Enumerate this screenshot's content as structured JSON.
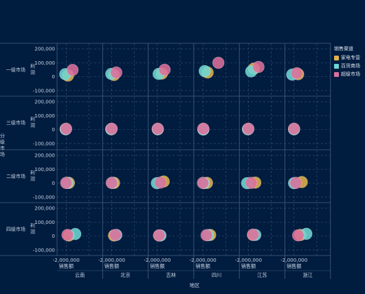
{
  "colors": {
    "background": "#001c3f",
    "grid": "#3d5674",
    "divider": "#43607f",
    "text": "#c9d4e4"
  },
  "legend": {
    "title": "销售渠道",
    "items": [
      {
        "label": "家电专营",
        "color": "#e0b24a"
      },
      {
        "label": "百货商场",
        "color": "#6dd7d4"
      },
      {
        "label": "超级市场",
        "color": "#dc6f9c"
      }
    ]
  },
  "chart_data": {
    "type": "scatter",
    "xlabel": "地区",
    "column_field_label": "销售额",
    "ylabel": "利润",
    "row_field_label": "分级市场",
    "columns": [
      "云南",
      "北京",
      "吉林",
      "四川",
      "江苏",
      "浙江"
    ],
    "rows": [
      "一级市场",
      "三级市场",
      "二级市场",
      "四级市场"
    ],
    "x_tick": "-2,000,000",
    "x_tick_value": -2000000,
    "xlim": [
      -3000000,
      2000000
    ],
    "ylim": [
      -140000,
      240000
    ],
    "y_ticks": [
      {
        "value": 200000,
        "label": "200,000"
      },
      {
        "value": 100000,
        "label": "100,000"
      },
      {
        "value": 0,
        "label": "0"
      },
      {
        "value": -100000,
        "label": "-100,000"
      }
    ],
    "grid": true,
    "legend_position": "top-right",
    "series": [
      {
        "name": "家电专营",
        "points": [
          {
            "row": "一级市场",
            "col": "云南",
            "x": -1800000,
            "y": 8000
          },
          {
            "row": "一级市场",
            "col": "北京",
            "x": -1750000,
            "y": 12000
          },
          {
            "row": "一级市场",
            "col": "吉林",
            "x": -1500000,
            "y": 22000
          },
          {
            "row": "一级市场",
            "col": "四川",
            "x": -1480000,
            "y": 30000
          },
          {
            "row": "一级市场",
            "col": "江苏",
            "x": -1400000,
            "y": 58000
          },
          {
            "row": "一级市场",
            "col": "浙江",
            "x": -1550000,
            "y": 18000
          },
          {
            "row": "三级市场",
            "col": "云南",
            "x": -2050000,
            "y": 4000
          },
          {
            "row": "三级市场",
            "col": "北京",
            "x": -2050000,
            "y": 4000
          },
          {
            "row": "三级市场",
            "col": "吉林",
            "x": -1950000,
            "y": 4000
          },
          {
            "row": "三级市场",
            "col": "四川",
            "x": -1950000,
            "y": 4000
          },
          {
            "row": "三级市场",
            "col": "江苏",
            "x": -2050000,
            "y": 4000
          },
          {
            "row": "三级市场",
            "col": "浙江",
            "x": -2000000,
            "y": 4000
          },
          {
            "row": "二级市场",
            "col": "云南",
            "x": -1700000,
            "y": 2000
          },
          {
            "row": "二级市场",
            "col": "北京",
            "x": -1750000,
            "y": 2000
          },
          {
            "row": "二级市场",
            "col": "吉林",
            "x": -1300000,
            "y": 12000
          },
          {
            "row": "二级市场",
            "col": "四川",
            "x": -1550000,
            "y": 2000
          },
          {
            "row": "二级市场",
            "col": "江苏",
            "x": -1250000,
            "y": 4000
          },
          {
            "row": "二级市场",
            "col": "浙江",
            "x": -1150000,
            "y": 8000
          },
          {
            "row": "四级市场",
            "col": "云南",
            "x": -1700000,
            "y": 4000
          },
          {
            "row": "四级市场",
            "col": "北京",
            "x": -1750000,
            "y": 4000
          },
          {
            "row": "四级市场",
            "col": "吉林",
            "x": -1800000,
            "y": 4000
          },
          {
            "row": "四级市场",
            "col": "四川",
            "x": -1200000,
            "y": 8000
          },
          {
            "row": "四级市场",
            "col": "江苏",
            "x": -1500000,
            "y": 8000
          },
          {
            "row": "四级市场",
            "col": "浙江",
            "x": -1300000,
            "y": 8000
          }
        ]
      },
      {
        "name": "百货商场",
        "points": [
          {
            "row": "一级市场",
            "col": "云南",
            "x": -2100000,
            "y": 18000
          },
          {
            "row": "一级市场",
            "col": "北京",
            "x": -2050000,
            "y": 20000
          },
          {
            "row": "一级市场",
            "col": "吉林",
            "x": -1850000,
            "y": 20000
          },
          {
            "row": "一级市场",
            "col": "四川",
            "x": -1800000,
            "y": 40000
          },
          {
            "row": "一级市场",
            "col": "江苏",
            "x": -1700000,
            "y": 38000
          },
          {
            "row": "一级市场",
            "col": "浙江",
            "x": -2200000,
            "y": 15000
          },
          {
            "row": "三级市场",
            "col": "云南",
            "x": -2050000,
            "y": 2000
          },
          {
            "row": "三级市场",
            "col": "北京",
            "x": -2050000,
            "y": 2000
          },
          {
            "row": "三级市场",
            "col": "吉林",
            "x": -1950000,
            "y": 2000
          },
          {
            "row": "三级市场",
            "col": "四川",
            "x": -1950000,
            "y": 0
          },
          {
            "row": "三级市场",
            "col": "江苏",
            "x": -2050000,
            "y": 2000
          },
          {
            "row": "三级市场",
            "col": "浙江",
            "x": -2000000,
            "y": 2000
          },
          {
            "row": "二级市场",
            "col": "云南",
            "x": -1900000,
            "y": 2000
          },
          {
            "row": "二级市场",
            "col": "北京",
            "x": -1950000,
            "y": 2000
          },
          {
            "row": "二级市场",
            "col": "吉林",
            "x": -2050000,
            "y": 0
          },
          {
            "row": "二级市场",
            "col": "四川",
            "x": -1900000,
            "y": 0
          },
          {
            "row": "二级市场",
            "col": "江苏",
            "x": -2150000,
            "y": 0
          },
          {
            "row": "二级市场",
            "col": "浙江",
            "x": -2000000,
            "y": 0
          },
          {
            "row": "四级市场",
            "col": "云南",
            "x": -1000000,
            "y": 15000
          },
          {
            "row": "四级市场",
            "col": "北京",
            "x": -1500000,
            "y": 8000
          },
          {
            "row": "四级市场",
            "col": "吉林",
            "x": -1650000,
            "y": 4000
          },
          {
            "row": "四级市场",
            "col": "四川",
            "x": -1450000,
            "y": 6000
          },
          {
            "row": "四级市场",
            "col": "江苏",
            "x": -1250000,
            "y": 8000
          },
          {
            "row": "四级市场",
            "col": "浙江",
            "x": -650000,
            "y": 16000
          }
        ]
      },
      {
        "name": "超级市场",
        "points": [
          {
            "row": "一级市场",
            "col": "云南",
            "x": -1300000,
            "y": 48000
          },
          {
            "row": "一级市场",
            "col": "北京",
            "x": -1500000,
            "y": 30000
          },
          {
            "row": "一级市场",
            "col": "吉林",
            "x": -1200000,
            "y": 50000
          },
          {
            "row": "一级市场",
            "col": "四川",
            "x": -300000,
            "y": 100000
          },
          {
            "row": "一级市场",
            "col": "江苏",
            "x": -900000,
            "y": 70000
          },
          {
            "row": "一级市场",
            "col": "浙江",
            "x": -1700000,
            "y": 25000
          },
          {
            "row": "三级市场",
            "col": "云南",
            "x": -2000000,
            "y": 6000
          },
          {
            "row": "三级市场",
            "col": "北京",
            "x": -2000000,
            "y": 6000
          },
          {
            "row": "三级市场",
            "col": "吉林",
            "x": -1950000,
            "y": 6000
          },
          {
            "row": "三级市场",
            "col": "四川",
            "x": -1950000,
            "y": 6000
          },
          {
            "row": "三级市场",
            "col": "江苏",
            "x": -2000000,
            "y": 6000
          },
          {
            "row": "三级市场",
            "col": "浙江",
            "x": -2000000,
            "y": 6000
          },
          {
            "row": "二级市场",
            "col": "云南",
            "x": -2000000,
            "y": 2000
          },
          {
            "row": "二级市场",
            "col": "北京",
            "x": -2000000,
            "y": 2000
          },
          {
            "row": "二级市场",
            "col": "吉林",
            "x": -1650000,
            "y": 4000
          },
          {
            "row": "二级市场",
            "col": "四川",
            "x": -2000000,
            "y": 2000
          },
          {
            "row": "二级市场",
            "col": "江苏",
            "x": -1700000,
            "y": 2000
          },
          {
            "row": "二级市场",
            "col": "浙江",
            "x": -1800000,
            "y": 2000
          },
          {
            "row": "四级市场",
            "col": "云南",
            "x": -1850000,
            "y": 8000
          },
          {
            "row": "四级市场",
            "col": "北京",
            "x": -1600000,
            "y": 8000
          },
          {
            "row": "四级市场",
            "col": "吉林",
            "x": -1800000,
            "y": 5000
          },
          {
            "row": "四级市场",
            "col": "四川",
            "x": -1600000,
            "y": 6000
          },
          {
            "row": "四级市场",
            "col": "江苏",
            "x": -1500000,
            "y": 10000
          },
          {
            "row": "四级市场",
            "col": "浙江",
            "x": -1550000,
            "y": 5000
          }
        ]
      }
    ]
  }
}
